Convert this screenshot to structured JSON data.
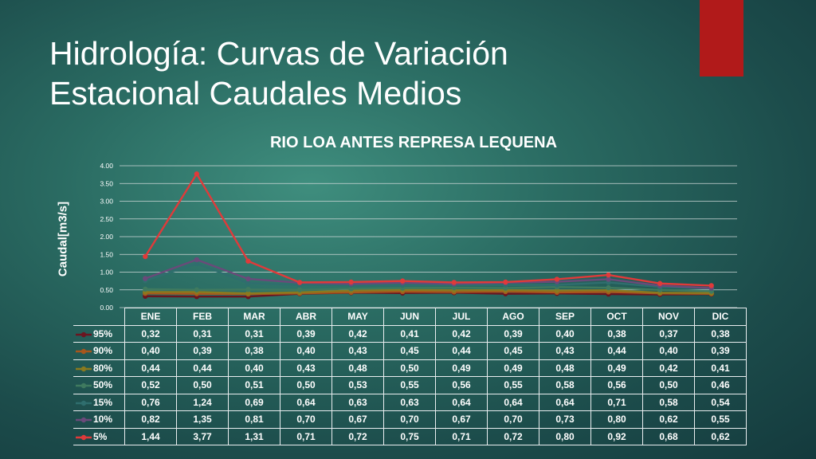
{
  "slide": {
    "title_line1": "Hidrología: Curvas de Variación",
    "title_line2": "Estacional Caudales Medios",
    "accent_color": "#b11a1a"
  },
  "chart_data": {
    "type": "line",
    "title": "RIO LOA ANTES REPRESA LEQUENA",
    "ylabel": "Caudal[m3/s]",
    "xlabel": "",
    "ylim": [
      0,
      4
    ],
    "yticks": [
      "0.00",
      "0.50",
      "1.00",
      "1.50",
      "2.00",
      "2.50",
      "3.00",
      "3.50",
      "4.00"
    ],
    "grid": true,
    "categories": [
      "ENE",
      "FEB",
      "MAR",
      "ABR",
      "MAY",
      "JUN",
      "JUL",
      "AGO",
      "SEP",
      "OCT",
      "NOV",
      "DIC"
    ],
    "series": [
      {
        "name": "95%",
        "color": "#6b1520",
        "values": [
          0.32,
          0.31,
          0.31,
          0.39,
          0.42,
          0.41,
          0.42,
          0.39,
          0.4,
          0.38,
          0.37,
          0.38
        ],
        "labels": [
          "0,32",
          "0,31",
          "0,31",
          "0,39",
          "0,42",
          "0,41",
          "0,42",
          "0,39",
          "0,40",
          "0,38",
          "0,37",
          "0,38"
        ]
      },
      {
        "name": "90%",
        "color": "#a8561c",
        "values": [
          0.4,
          0.39,
          0.38,
          0.4,
          0.43,
          0.45,
          0.44,
          0.45,
          0.43,
          0.44,
          0.4,
          0.39
        ],
        "labels": [
          "0,40",
          "0,39",
          "0,38",
          "0,40",
          "0,43",
          "0,45",
          "0,44",
          "0,45",
          "0,43",
          "0,44",
          "0,40",
          "0,39"
        ]
      },
      {
        "name": "80%",
        "color": "#8a7a1f",
        "values": [
          0.44,
          0.44,
          0.4,
          0.43,
          0.48,
          0.5,
          0.49,
          0.49,
          0.48,
          0.49,
          0.42,
          0.41
        ],
        "labels": [
          "0,44",
          "0,44",
          "0,40",
          "0,43",
          "0,48",
          "0,50",
          "0,49",
          "0,49",
          "0,48",
          "0,49",
          "0,42",
          "0,41"
        ]
      },
      {
        "name": "50%",
        "color": "#3f7a5f",
        "values": [
          0.52,
          0.5,
          0.51,
          0.5,
          0.53,
          0.55,
          0.56,
          0.55,
          0.58,
          0.56,
          0.5,
          0.46
        ],
        "labels": [
          "0,52",
          "0,50",
          "0,51",
          "0,50",
          "0,53",
          "0,55",
          "0,56",
          "0,55",
          "0,58",
          "0,56",
          "0,50",
          "0,46"
        ]
      },
      {
        "name": "15%",
        "color": "#2f6e6e",
        "values": [
          0.76,
          1.24,
          0.69,
          0.64,
          0.63,
          0.63,
          0.64,
          0.64,
          0.64,
          0.71,
          0.58,
          0.54
        ],
        "labels": [
          "0,76",
          "1,24",
          "0,69",
          "0,64",
          "0,63",
          "0,63",
          "0,64",
          "0,64",
          "0,64",
          "0,71",
          "0,58",
          "0,54"
        ]
      },
      {
        "name": "10%",
        "color": "#6a4a7a",
        "values": [
          0.82,
          1.35,
          0.81,
          0.7,
          0.67,
          0.7,
          0.67,
          0.7,
          0.73,
          0.8,
          0.62,
          0.55
        ],
        "labels": [
          "0,82",
          "1,35",
          "0,81",
          "0,70",
          "0,67",
          "0,70",
          "0,67",
          "0,70",
          "0,73",
          "0,80",
          "0,62",
          "0,55"
        ]
      },
      {
        "name": "5%",
        "color": "#e03a3a",
        "values": [
          1.44,
          3.77,
          1.31,
          0.71,
          0.72,
          0.75,
          0.71,
          0.72,
          0.8,
          0.92,
          0.68,
          0.62
        ],
        "labels": [
          "1,44",
          "3,77",
          "1,31",
          "0,71",
          "0,72",
          "0,75",
          "0,71",
          "0,72",
          "0,80",
          "0,92",
          "0,68",
          "0,62"
        ]
      }
    ]
  }
}
